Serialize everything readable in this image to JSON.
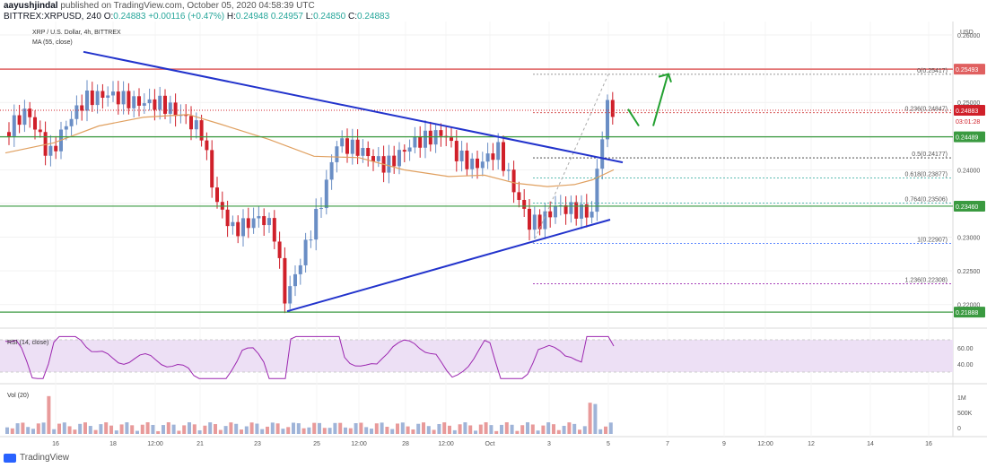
{
  "header": {
    "author": "aayushjindal",
    "published_text": "published on TradingView.com, October 05, 2020 04:58:39 UTC",
    "symbol_line_prefix": "BITTREX:XRPUSD, 240",
    "o_label": "O:",
    "o_value": "0.24883",
    "change": "+0.00116 (+0.47%)",
    "h_label": "H:",
    "h_value": "0.24948",
    "mid_value": "0.24957",
    "l_label": "L:",
    "l_value": "0.24850",
    "c_label": "C:",
    "c_value": "0.24883"
  },
  "legend": {
    "title": "XRP / U.S. Dollar, 4h, BITTREX",
    "ma": "MA (55, close)",
    "rsi": "RSI (14, close)",
    "vol": "Vol (20)"
  },
  "footer": {
    "brand": "TradingView"
  },
  "colors": {
    "up": "#6a8ec5",
    "down": "#d0202a",
    "ma": "#e0a060",
    "trendline": "#2233cc",
    "resistance": "#e06060",
    "support": "#3a9a40",
    "fib": "#888888",
    "rsi": "#9c27b0",
    "rsi_band": "#ede0f5",
    "arrow": "#22a030"
  },
  "chart_data": {
    "type": "candlestick",
    "symbol": "XRP / U.S. Dollar",
    "timeframe": "4h",
    "exchange": "BITTREX",
    "x_ticks": [
      "16",
      "18",
      "12:00",
      "21",
      "23",
      "25",
      "12:00",
      "28",
      "12:00",
      "Oct",
      "3",
      "5",
      "7",
      "9",
      "12:00",
      "12",
      "14",
      "16"
    ],
    "y_ticks": [
      "0.26000",
      "0.25500",
      "0.25000",
      "0.24500",
      "0.24000",
      "0.23500",
      "0.23000",
      "0.22500",
      "0.22000"
    ],
    "ylim": [
      0.2165,
      0.262
    ],
    "currency": "USD",
    "levels": {
      "resistance": "0.25493",
      "last_price": "0.24883",
      "countdown": "03:01:28",
      "level_1": "0.24489",
      "level_2": "0.23460",
      "support": "0.21888"
    },
    "fibonacci": [
      {
        "label": "0(0.25417)"
      },
      {
        "label": "0.236(0.24847)"
      },
      {
        "label": "0.5(0.24177)"
      },
      {
        "label": "0.618(0.23877)"
      },
      {
        "label": "0.764(0.23506)"
      },
      {
        "label": "1(0.22907)"
      },
      {
        "label": "1.236(0.22308)"
      }
    ],
    "rsi": {
      "y_ticks": [
        "60.00",
        "40.00"
      ]
    },
    "volume": {
      "y_ticks": [
        "1M",
        "500K",
        "0"
      ]
    }
  }
}
